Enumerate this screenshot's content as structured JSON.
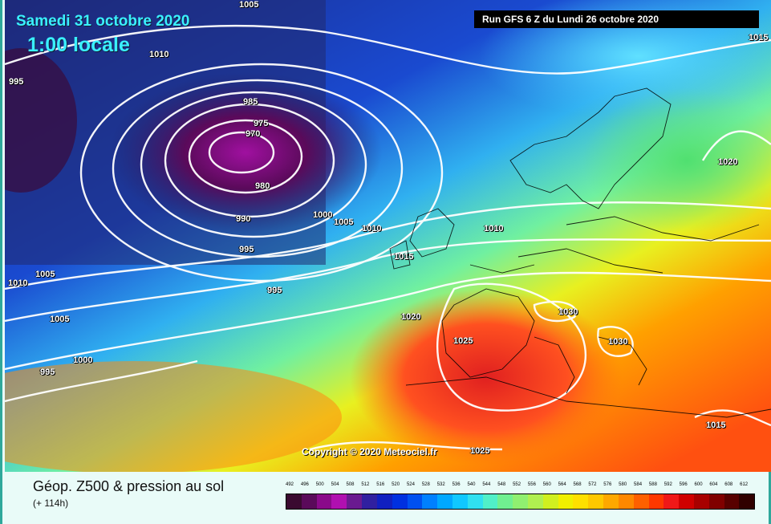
{
  "header": {
    "date": "Samedi 31 octobre 2020",
    "time": "1:00 locale",
    "run": "Run GFS 6 Z du Lundi 26 octobre 2020"
  },
  "copyright": "Copyright © 2020 Meteociel.fr",
  "footer": {
    "title": "Géop. Z500 & pression au sol",
    "subtitle": "(+ 114h)"
  },
  "pressure_labels": [
    {
      "text": "1005"
    },
    {
      "text": "1010"
    },
    {
      "text": "995"
    },
    {
      "text": "975"
    },
    {
      "text": "970"
    },
    {
      "text": "980"
    },
    {
      "text": "990"
    },
    {
      "text": "995"
    },
    {
      "text": "1000"
    },
    {
      "text": "1005"
    },
    {
      "text": "1010"
    },
    {
      "text": "1010"
    },
    {
      "text": "995"
    },
    {
      "text": "1015"
    },
    {
      "text": "1015"
    },
    {
      "text": "1020"
    },
    {
      "text": "1020"
    },
    {
      "text": "1025"
    },
    {
      "text": "1030"
    },
    {
      "text": "1030"
    },
    {
      "text": "1015"
    },
    {
      "text": "1010"
    },
    {
      "text": "1005"
    },
    {
      "text": "1005"
    },
    {
      "text": "1000"
    },
    {
      "text": "995"
    },
    {
      "text": "1025"
    },
    {
      "text": "985"
    }
  ],
  "scale": {
    "labels": [
      "492",
      "496",
      "500",
      "504",
      "508",
      "512",
      "516",
      "520",
      "524",
      "528",
      "532",
      "536",
      "540",
      "544",
      "548",
      "552",
      "556",
      "560",
      "564",
      "568",
      "572",
      "576",
      "580",
      "584",
      "588",
      "592",
      "596",
      "600",
      "604",
      "608",
      "612"
    ],
    "colors": [
      "#3a0a30",
      "#5a0a5a",
      "#8a0a8a",
      "#b010b0",
      "#6a1a90",
      "#3020a0",
      "#1020c0",
      "#0030e0",
      "#0050f0",
      "#0080ff",
      "#00a8ff",
      "#10c8ff",
      "#30e0f0",
      "#50f0c8",
      "#70f090",
      "#90f070",
      "#b0f050",
      "#d0f020",
      "#f0f000",
      "#ffe000",
      "#ffc800",
      "#ffa800",
      "#ff8800",
      "#ff6000",
      "#ff3800",
      "#f01818",
      "#d00000",
      "#a80000",
      "#800000",
      "#580000",
      "#300000"
    ]
  }
}
